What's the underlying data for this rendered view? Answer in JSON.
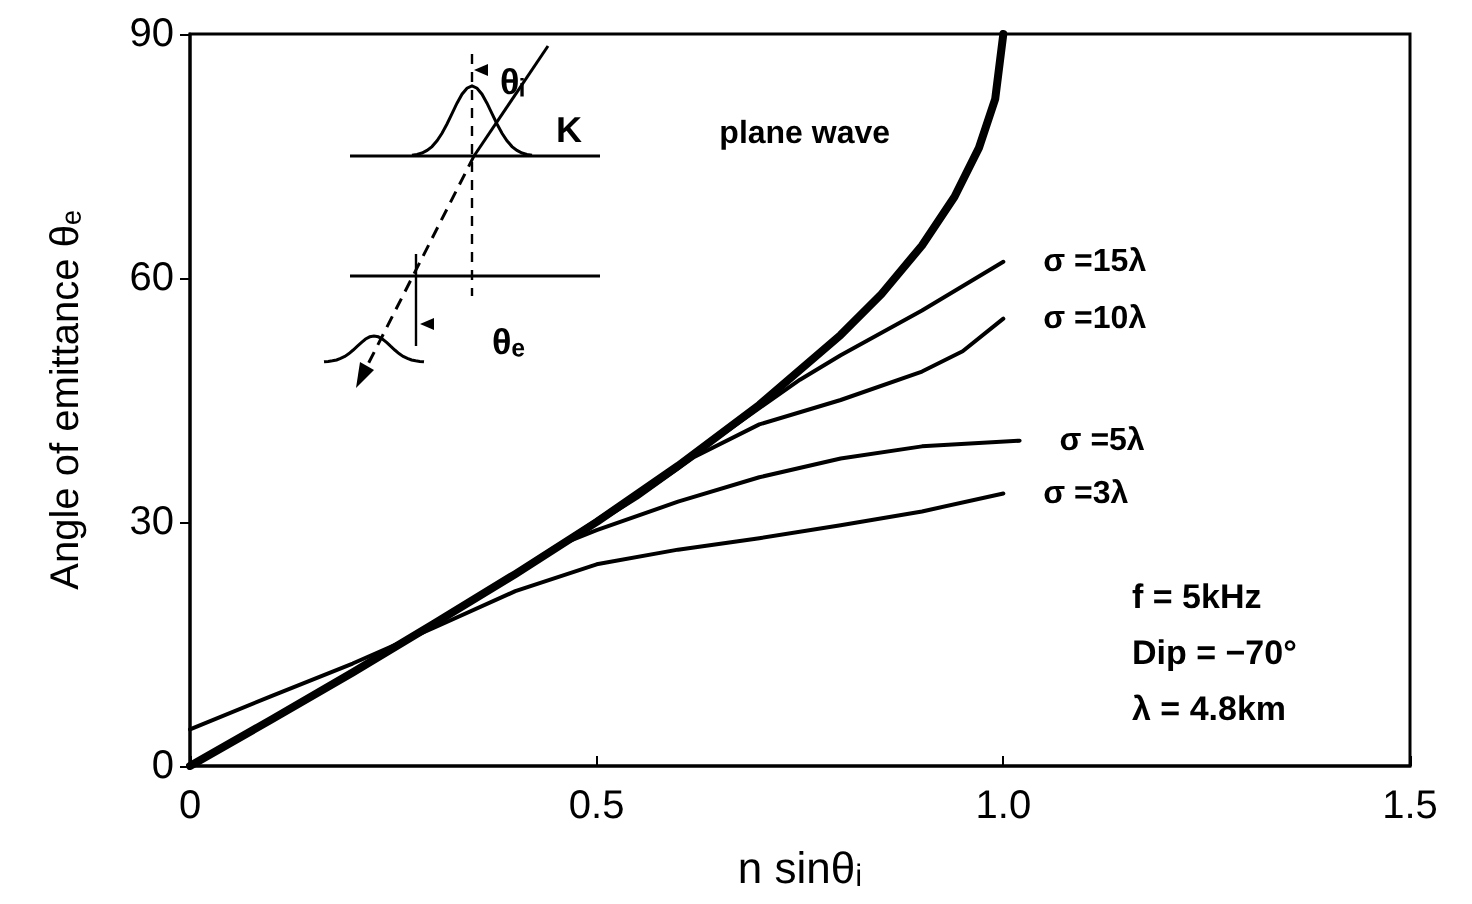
{
  "chart_data": {
    "type": "line",
    "xlabel": "n sinθᵢ",
    "ylabel": "Angle of emittance θₑ",
    "xlim": [
      0,
      1.5
    ],
    "ylim": [
      0,
      90
    ],
    "xticks": [
      0,
      0.5,
      {
        "value": 1,
        "label": "1.0"
      },
      1.5
    ],
    "yticks": [
      0,
      30,
      60,
      90
    ],
    "grid": false,
    "legend": false,
    "marker": "none",
    "line_style": "solid",
    "series": [
      {
        "name": "plane wave",
        "color": "#000000",
        "x": [
          0,
          0.1,
          0.2,
          0.3,
          0.4,
          0.5,
          0.6,
          0.7,
          0.8,
          0.85,
          0.9,
          0.94,
          0.97,
          0.99,
          1.0
        ],
        "values": [
          0,
          5.7,
          11.5,
          17.5,
          23.6,
          30,
          36.9,
          44.4,
          53,
          58,
          64,
          70,
          76,
          82,
          90
        ]
      },
      {
        "name": "σ =15λ",
        "color": "#000000",
        "x": [
          0,
          0.2,
          0.4,
          0.6,
          0.7,
          0.75,
          0.8,
          0.9,
          1.0
        ],
        "values": [
          0,
          11.5,
          23.6,
          36.9,
          44,
          47.5,
          50.5,
          56,
          62
        ]
      },
      {
        "name": "σ =10λ",
        "color": "#000000",
        "x": [
          0,
          0.2,
          0.4,
          0.55,
          0.62,
          0.7,
          0.8,
          0.9,
          0.95,
          1.0
        ],
        "values": [
          0,
          11.5,
          23.6,
          33,
          38,
          42,
          45,
          48.5,
          51,
          55
        ]
      },
      {
        "name": "σ =5λ",
        "color": "#000000",
        "x": [
          0,
          0.2,
          0.35,
          0.45,
          0.5,
          0.6,
          0.7,
          0.8,
          0.9,
          1.02
        ],
        "values": [
          0,
          11.5,
          20.5,
          27,
          29,
          32.5,
          35.5,
          37.8,
          39.3,
          40
        ]
      },
      {
        "name": "σ =3λ",
        "color": "#000000",
        "x": [
          0,
          0.1,
          0.2,
          0.3,
          0.4,
          0.5,
          0.6,
          0.7,
          0.8,
          0.9,
          1.0
        ],
        "values": [
          4.5,
          8.6,
          12.6,
          17,
          21.5,
          24.8,
          26.6,
          28,
          29.6,
          31.3,
          33.5
        ]
      }
    ],
    "annotations": [
      "f = 5kHz",
      "Dip = −70°",
      "λ = 4.8km",
      "θᵢ",
      "K",
      "θₑ"
    ]
  }
}
